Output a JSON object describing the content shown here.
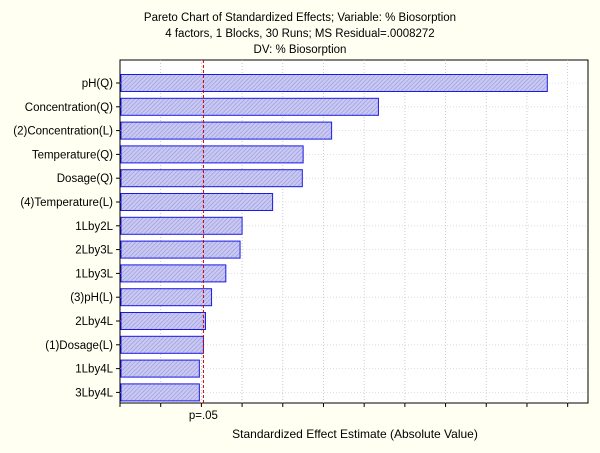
{
  "chart_data": {
    "type": "bar",
    "orientation": "horizontal",
    "title": "Pareto Chart of Standardized Effects; Variable: % Biosorption",
    "subtitle": "4 factors, 1 Blocks, 30 Runs; MS Residual=.0008272",
    "subtitle2": "DV: % Biosorption",
    "xlabel": "Standardized Effect Estimate (Absolute Value)",
    "ylabel": "",
    "categories": [
      "pH(Q)",
      "Concentration(Q)",
      "(2)Concentration(L)",
      "Temperature(Q)",
      "Dosage(Q)",
      "(4)Temperature(L)",
      "1Lby2L",
      "2Lby3L",
      "1Lby3L",
      "(3)pH(L)",
      "2Lby4L",
      "(1)Dosage(L)",
      "1Lby4L",
      "3Lby4L"
    ],
    "values": [
      10.5,
      6.35,
      5.2,
      4.5,
      4.48,
      3.75,
      3.0,
      2.95,
      2.6,
      2.25,
      2.1,
      2.05,
      1.95,
      1.95
    ],
    "xlim": [
      0,
      11.5
    ],
    "reference_line": {
      "label": "p=.05",
      "value": 2.05
    },
    "colors": {
      "bar_fill": "#c8c8f0",
      "bar_stroke": "#1a1ae6",
      "reference_line": "#cc0000",
      "background": "#fffff2",
      "plot_background": "#ffffff"
    },
    "grid": true
  }
}
